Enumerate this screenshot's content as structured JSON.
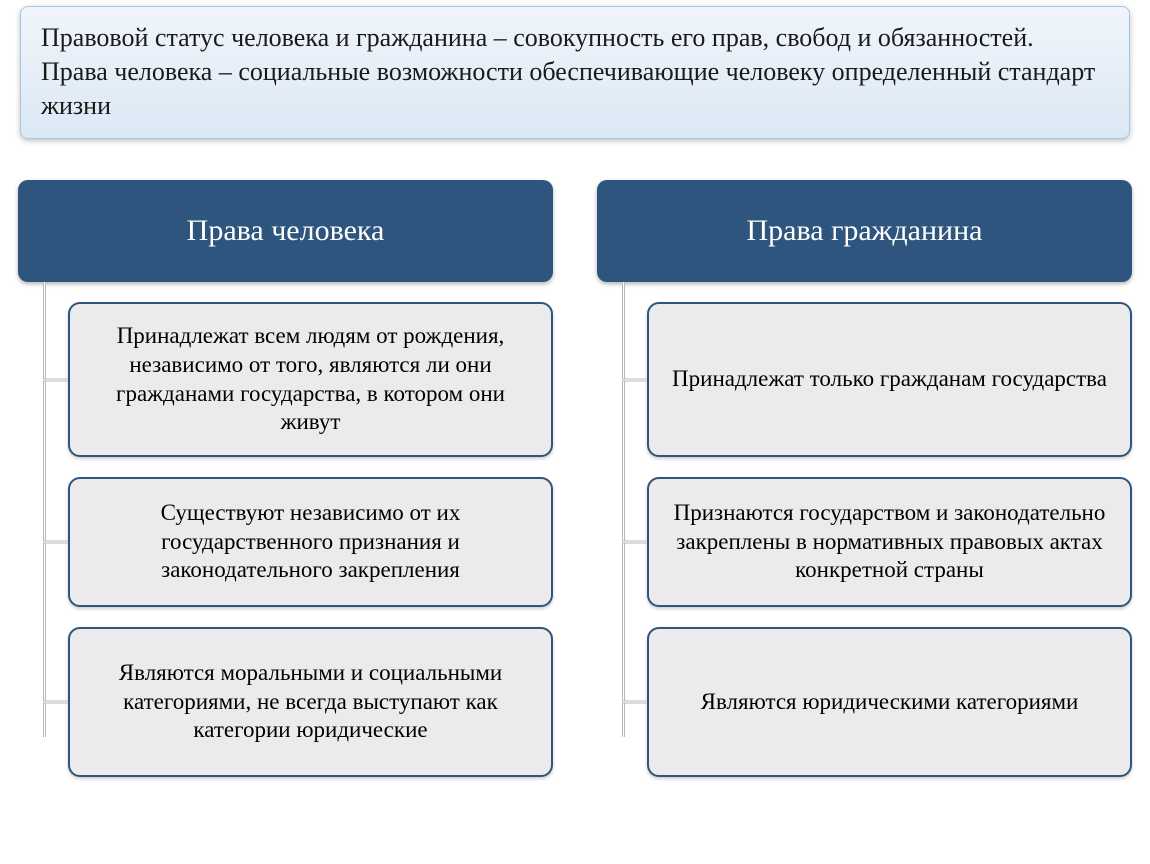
{
  "definition": {
    "text": "Правовой статус человека и гражданина – совокупность его прав, свобод и обязанностей.\nПрава человека – социальные возможности обеспечивающие человеку определенный стандарт жизни",
    "background_gradient_top": "#f0f5fb",
    "background_gradient_bottom": "#dce8f5",
    "border_color": "#a9c4e0",
    "font_size": 26,
    "text_color": "#1a1a1a"
  },
  "diagram": {
    "type": "tree",
    "header_bg": "#2e557d",
    "header_text_color": "#ffffff",
    "header_font_size": 30,
    "item_bg": "#ebebeb",
    "item_border_color": "#2e557d",
    "item_border_width": 2,
    "item_border_radius": 12,
    "item_font_size": 23,
    "item_text_color": "#000000",
    "connector_color": "#b8b8b8",
    "columns": [
      {
        "title": "Права человека",
        "items": [
          {
            "text": "Принадлежат всем людям от рождения, независимо от того, являются ли они гражданами государства, в котором они живут",
            "min_height": 155
          },
          {
            "text": "Существуют независимо от их государственного признания и законодательного закрепления",
            "min_height": 130
          },
          {
            "text": "Являются моральными и социальными категориями, не всегда выступают как категории юридические",
            "min_height": 150
          }
        ]
      },
      {
        "title": "Права гражданина",
        "items": [
          {
            "text": "Принадлежат только гражданам государства",
            "min_height": 155
          },
          {
            "text": "Признаются государством и законодательно закреплены в нормативных правовых актах конкретной страны",
            "min_height": 130
          },
          {
            "text": "Являются юридическими категориями",
            "min_height": 150
          }
        ]
      }
    ]
  }
}
